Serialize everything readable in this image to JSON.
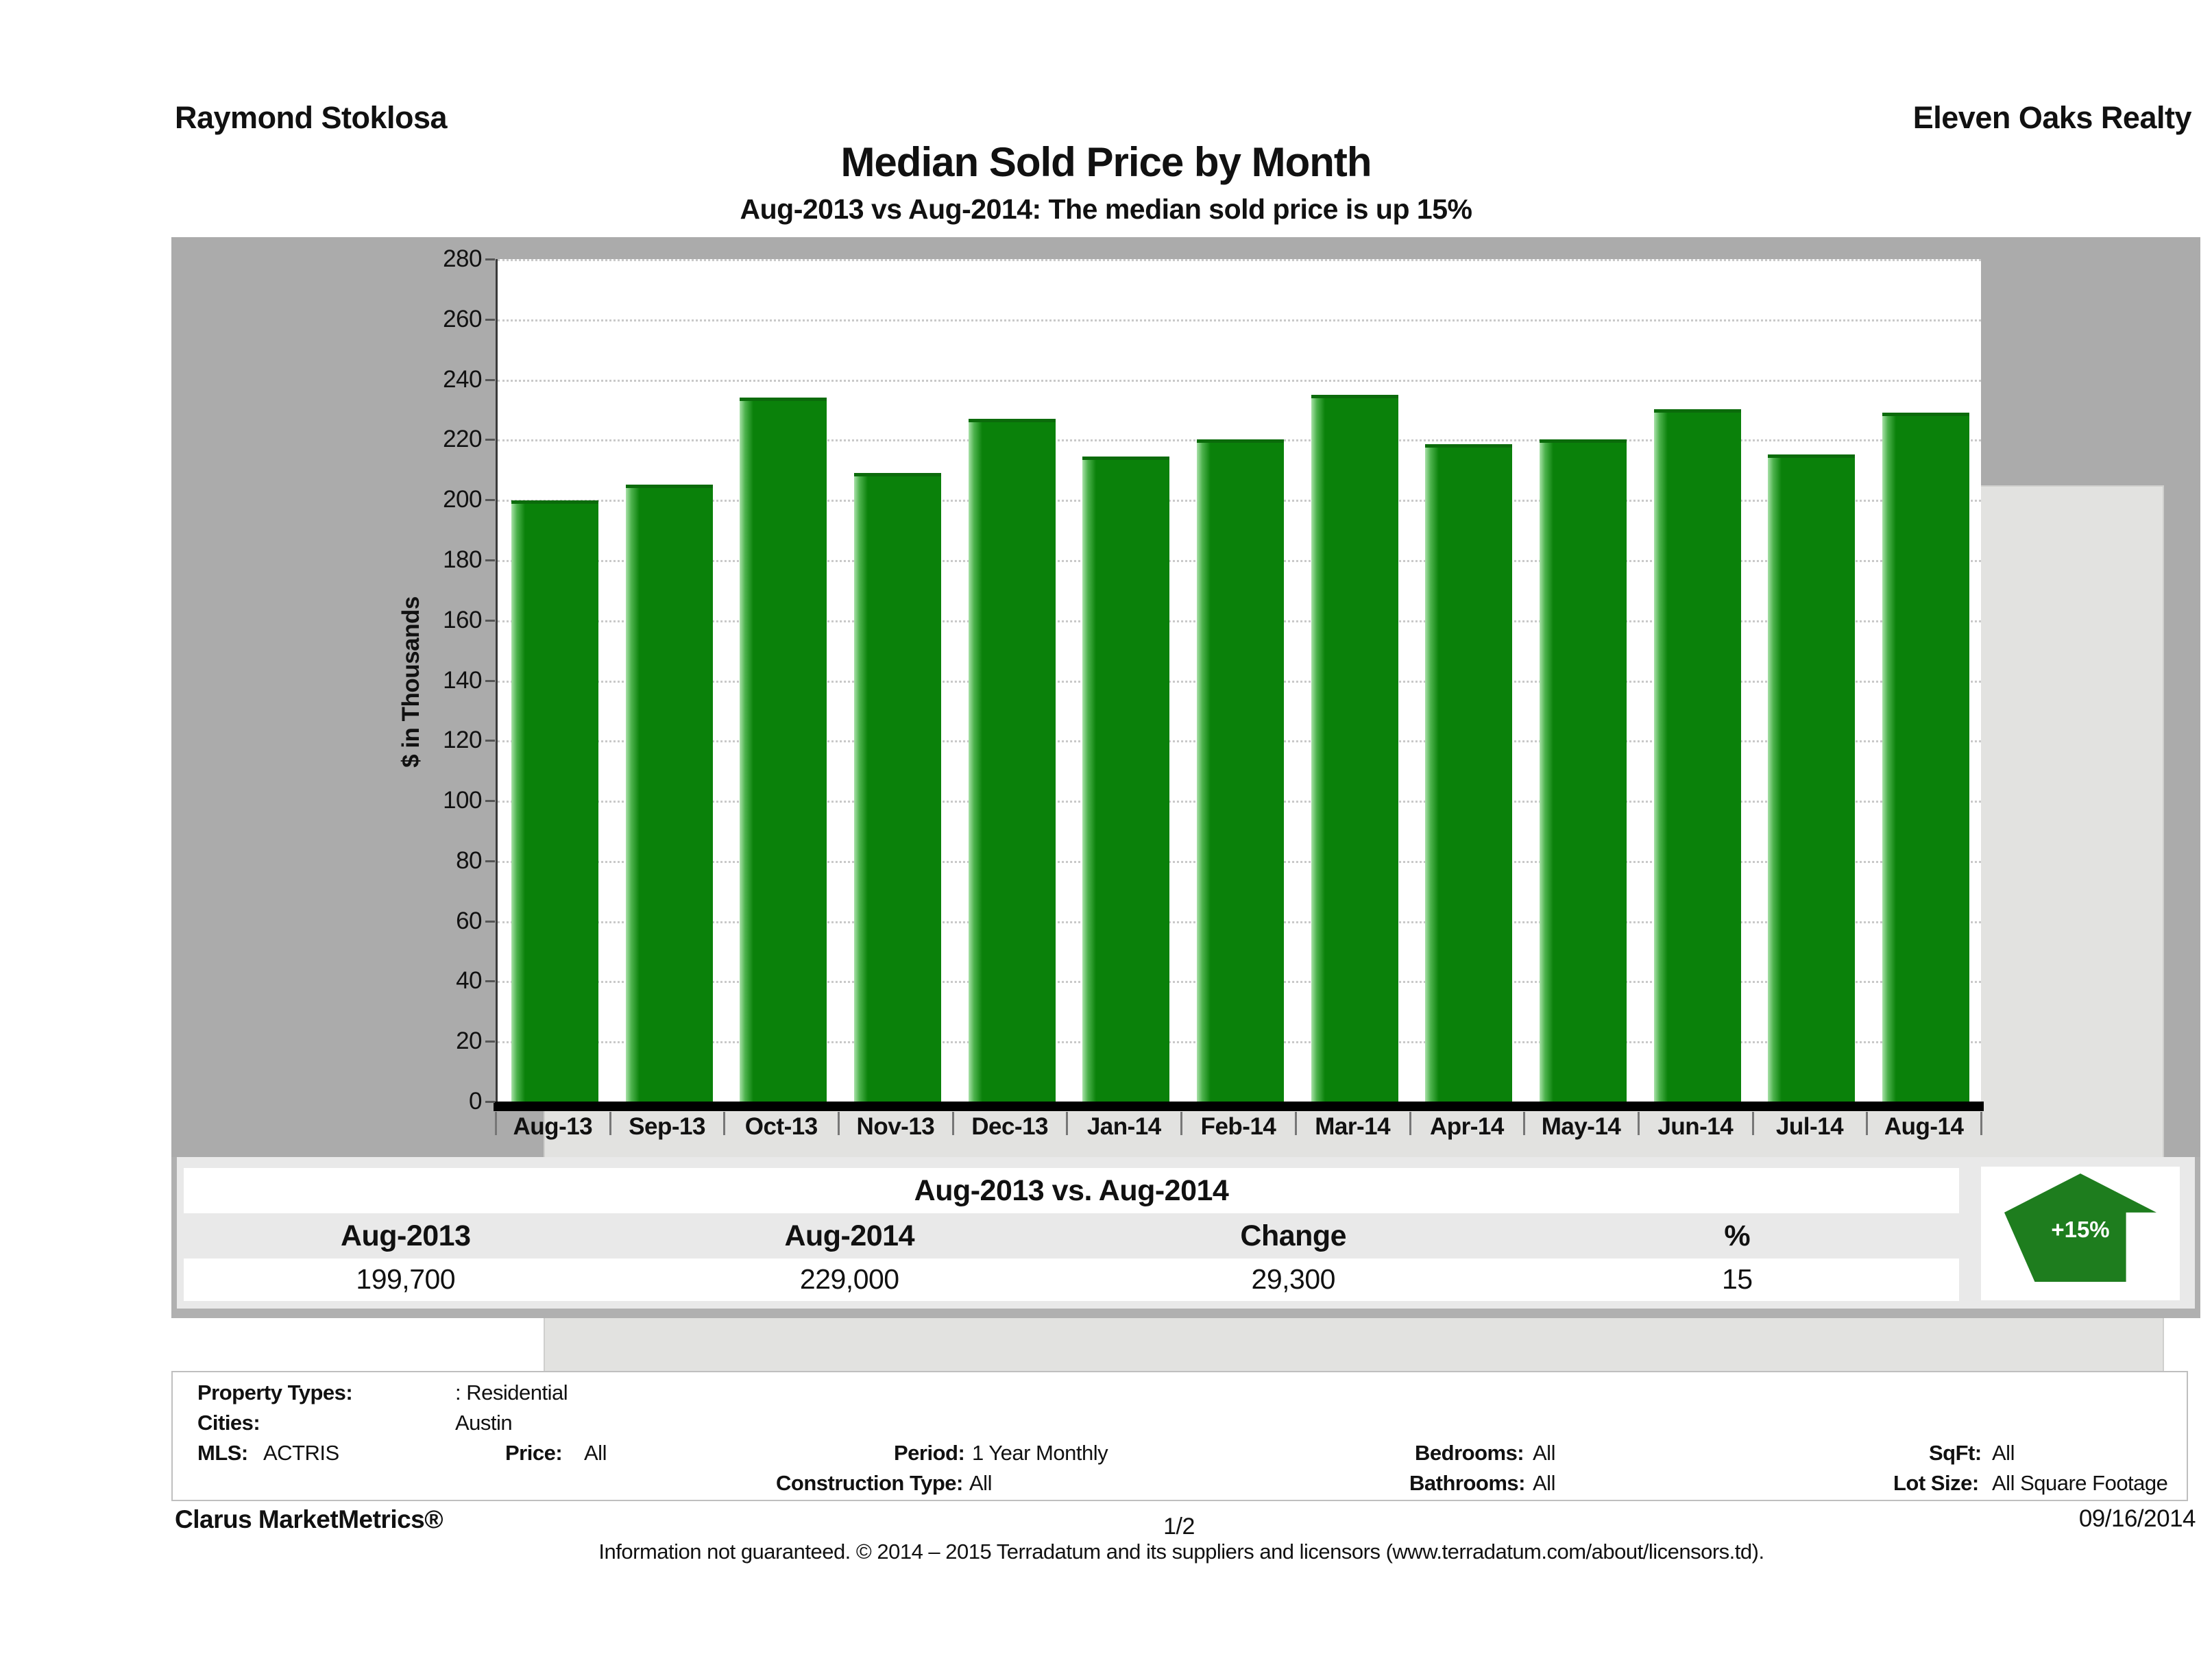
{
  "header": {
    "left": "Raymond Stoklosa",
    "right": "Eleven Oaks Realty",
    "title": "Median Sold Price by Month",
    "subtitle": "Aug-2013 vs Aug-2014: The median sold price is up 15%"
  },
  "chart_data": {
    "type": "bar",
    "title": "Median Sold Price by Month",
    "subtitle": "Aug-2013 vs Aug-2014: The median sold price is up 15%",
    "xlabel": "",
    "ylabel": "$ in Thousands",
    "ylim": [
      0,
      280
    ],
    "ytick_step": 20,
    "grid": true,
    "legend_position": "none",
    "bar_color": "#0a810a",
    "categories": [
      "Aug-13",
      "Sep-13",
      "Oct-13",
      "Nov-13",
      "Dec-13",
      "Jan-14",
      "Feb-14",
      "Mar-14",
      "Apr-14",
      "May-14",
      "Jun-14",
      "Jul-14",
      "Aug-14"
    ],
    "values": [
      199.7,
      205,
      234,
      209,
      227,
      214.5,
      220,
      235,
      218.5,
      220,
      230,
      215,
      229
    ]
  },
  "summary_table": {
    "title": "Aug-2013 vs. Aug-2014",
    "columns": [
      "Aug-2013",
      "Aug-2014",
      "Change",
      "%"
    ],
    "values": [
      "199,700",
      "229,000",
      "29,300",
      "15"
    ],
    "badge_label": "+15%",
    "badge_color": "#1e7d1e"
  },
  "filters": {
    "property_types_label": "Property Types:",
    "property_types_value": ": Residential",
    "cities_label": "Cities:",
    "cities_value": "Austin",
    "mls_label": "MLS:",
    "mls_value": "ACTRIS",
    "price_label": "Price:",
    "price_value": "All",
    "period_label": "Period:",
    "period_value": "1 Year Monthly",
    "construction_label": "Construction Type:",
    "construction_value": "All",
    "bedrooms_label": "Bedrooms:",
    "bedrooms_value": "All",
    "bathrooms_label": "Bathrooms:",
    "bathrooms_value": "All",
    "sqft_label": "SqFt:",
    "sqft_value": "All",
    "lotsize_label": "Lot Size:",
    "lotsize_value": "All Square Footage"
  },
  "footer": {
    "brand": "Clarus MarketMetrics®",
    "page": "1/2",
    "date": "09/16/2014",
    "disclaimer": "Information not guaranteed. © 2014 – 2015 Terradatum and its suppliers and licensors (www.terradatum.com/about/licensors.td)."
  }
}
